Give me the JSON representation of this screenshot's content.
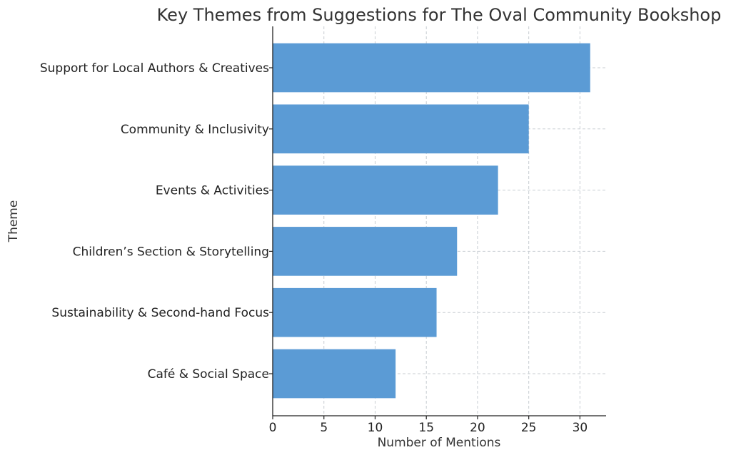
{
  "chart_data": {
    "type": "bar",
    "orientation": "horizontal",
    "title": "Key Themes from Suggestions for The Oval Community Bookshop",
    "xlabel": "Number of Mentions",
    "ylabel": "Theme",
    "categories": [
      "Support for Local Authors & Creatives",
      "Community & Inclusivity",
      "Events & Activities",
      "Children’s Section & Storytelling",
      "Sustainability & Second-hand Focus",
      "Café & Social Space"
    ],
    "values": [
      31,
      25,
      22,
      18,
      16,
      12
    ],
    "xlim": [
      0,
      32.55
    ],
    "xticks": [
      "0",
      "5",
      "10",
      "15",
      "20",
      "25",
      "30"
    ],
    "grid": true,
    "bar_color": "#5b9bd5"
  }
}
